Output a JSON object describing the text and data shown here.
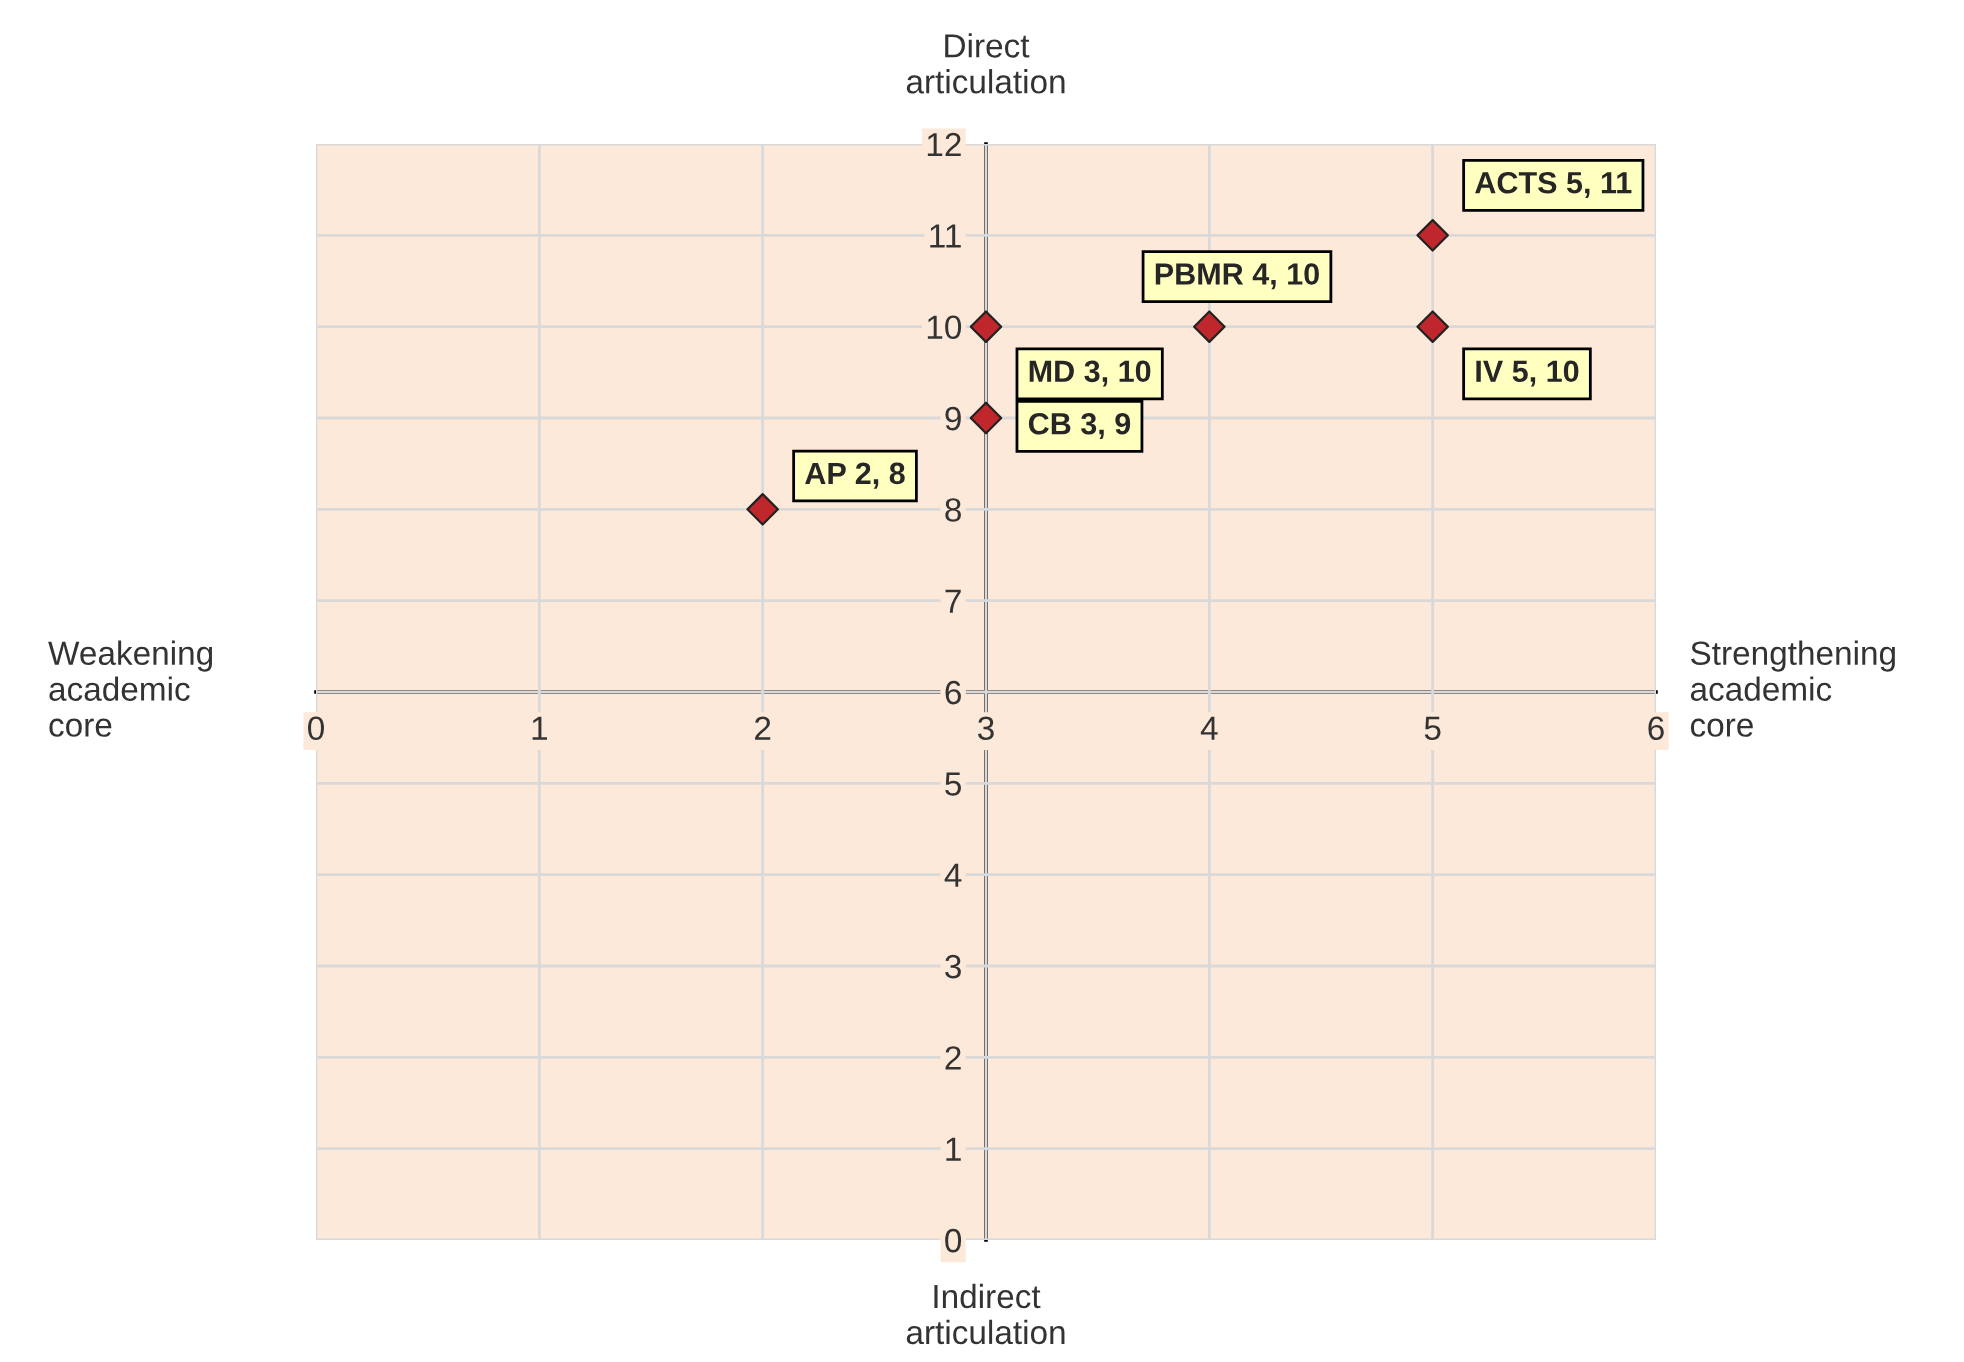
{
  "chart_data": {
    "type": "scatter",
    "annotations": [
      "Direct\narticulation",
      "Indirect\narticulation",
      "Weakening\nacademic\ncore",
      "Strengthening\nacademic\ncore"
    ],
    "series": [
      {
        "color": "#c0272d",
        "x": [
          2,
          3,
          3,
          4,
          5,
          5
        ],
        "values": [
          8,
          9,
          10,
          10,
          11,
          10
        ],
        "value_labels": [
          "AP 2, 8",
          "CB 3, 9",
          "MD 3, 10",
          "PBMR 4, 10",
          "ACTS 5, 11",
          "IV 5, 10"
        ]
      }
    ],
    "xlim": [
      0,
      6
    ],
    "xticks": [
      0,
      1,
      2,
      3,
      4,
      5,
      6
    ],
    "ylim": [
      0,
      12
    ],
    "yticks": [
      0,
      1,
      2,
      3,
      4,
      5,
      6,
      7,
      8,
      9,
      10,
      11,
      12
    ],
    "grid": true,
    "marker": "diamond",
    "legend": false
  }
}
